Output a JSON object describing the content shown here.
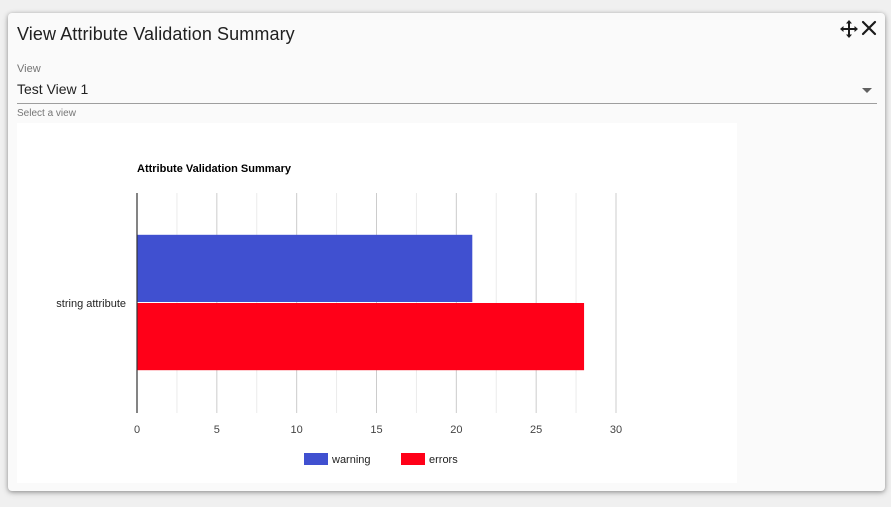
{
  "dialog": {
    "title": "View Attribute Validation Summary",
    "icons": [
      "move-icon",
      "close-icon"
    ]
  },
  "view_select": {
    "label": "View",
    "value": "Test View 1",
    "hint": "Select a view"
  },
  "chart_data": {
    "type": "bar",
    "orientation": "horizontal",
    "title": "Attribute Validation Summary",
    "categories": [
      "string attribute"
    ],
    "series": [
      {
        "name": "warning",
        "values": [
          21
        ],
        "color": "#4050d0"
      },
      {
        "name": "errors",
        "values": [
          28
        ],
        "color": "#ff0018"
      }
    ],
    "xlim": [
      0,
      30
    ],
    "xticks": [
      "0",
      "5",
      "10",
      "15",
      "20",
      "25",
      "30"
    ],
    "grid": true,
    "legend": "bottom"
  }
}
